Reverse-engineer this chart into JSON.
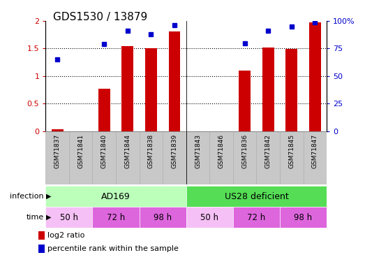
{
  "title": "GDS1530 / 13879",
  "samples": [
    "GSM71837",
    "GSM71841",
    "GSM71840",
    "GSM71844",
    "GSM71838",
    "GSM71839",
    "GSM71843",
    "GSM71846",
    "GSM71836",
    "GSM71842",
    "GSM71845",
    "GSM71847"
  ],
  "log2_ratio": [
    0.03,
    0.0,
    0.77,
    1.54,
    1.5,
    1.81,
    0.0,
    0.0,
    1.1,
    1.52,
    1.49,
    1.97
  ],
  "percentile_rank": [
    0.65,
    null,
    0.79,
    0.91,
    0.88,
    0.96,
    null,
    null,
    0.8,
    0.91,
    0.95,
    0.99
  ],
  "bar_color": "#cc0000",
  "dot_color": "#0000cc",
  "ylim_left": [
    0,
    2
  ],
  "ylim_right": [
    0,
    100
  ],
  "yticks_left": [
    0,
    0.5,
    1.0,
    1.5,
    2.0
  ],
  "yticks_right": [
    0,
    25,
    50,
    75,
    100
  ],
  "ytick_labels_left": [
    "0",
    "0.5",
    "1",
    "1.5",
    "2"
  ],
  "ytick_labels_right": [
    "0",
    "25",
    "50",
    "75",
    "100%"
  ],
  "infection_color_ad169": "#bbffbb",
  "infection_color_us28": "#55dd55",
  "time_color_50h": "#f5c0f5",
  "time_color_72h": "#dd66dd",
  "time_color_98h": "#dd66dd",
  "legend_bar_label": "log2 ratio",
  "legend_dot_label": "percentile rank within the sample",
  "infection_row_label": "infection",
  "time_row_label": "time",
  "bar_width": 0.5,
  "background_color": "#ffffff",
  "label_area_color": "#c8c8c8",
  "label_area_border": "#aaaaaa"
}
